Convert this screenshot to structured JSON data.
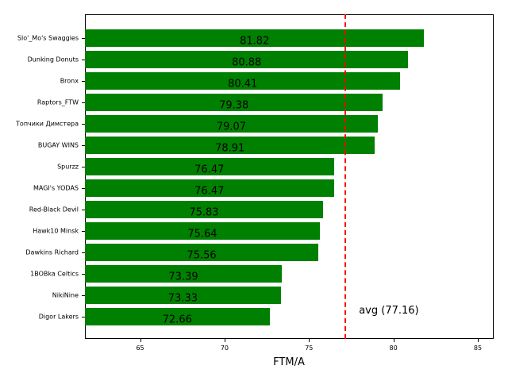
{
  "chart_data": {
    "type": "bar",
    "orientation": "horizontal",
    "title": "",
    "xlabel": "FTM/A",
    "ylabel": "",
    "xlim": [
      61.73,
      85.94
    ],
    "xticks": [
      65,
      70,
      75,
      80,
      85
    ],
    "categories": [
      "Slo'_Mo's Swaggies",
      "Dunking Donuts",
      "Bronx",
      "Raptors_FTW",
      "Топчики Димстера",
      "BUGAY WINS",
      "Spurzz",
      "MAGI's YODAS",
      "Red-Black Devil",
      "Hawk10 Minsk",
      "Dawkins Richard",
      "1BOBka Celtics",
      "NikiNine",
      "Digor Lakers"
    ],
    "values": [
      81.82,
      80.88,
      80.41,
      79.38,
      79.07,
      78.91,
      76.47,
      76.47,
      75.83,
      75.64,
      75.56,
      73.39,
      73.33,
      72.66
    ],
    "value_labels": [
      "81.82",
      "80.88",
      "80.41",
      "79.38",
      "79.07",
      "78.91",
      "76.47",
      "76.47",
      "75.83",
      "75.64",
      "75.56",
      "73.39",
      "73.33",
      "72.66"
    ],
    "bar_color": "#008000",
    "reference_line": {
      "value": 77.16,
      "label": "avg (77.16)",
      "color": "#ff0000",
      "style": "dashed"
    },
    "grid": false,
    "legend": null
  }
}
